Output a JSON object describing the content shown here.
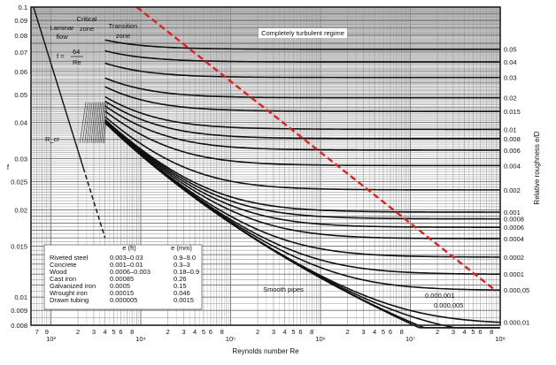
{
  "chart_data": {
    "type": "line",
    "title": "",
    "xlabel": "Reynolds number Re",
    "ylabel": "f",
    "right_label": "Relative roughness e/D",
    "x_scale": "log",
    "y_scale": "log",
    "xlim": [
      600,
      100000000
    ],
    "ylim": [
      0.008,
      0.1
    ],
    "grid": true,
    "x_tick_labels": [
      "7",
      "9",
      "10³",
      "2",
      "3",
      "4",
      "5",
      "6",
      "8",
      "10⁴",
      "2",
      "3",
      "4",
      "5",
      "6",
      "8",
      "10⁵",
      "2",
      "3",
      "4",
      "5",
      "6",
      "8",
      "10⁶",
      "2",
      "3",
      "4",
      "5",
      "6",
      "8",
      "10⁷",
      "2",
      "3",
      "4",
      "5",
      "6",
      "8",
      "10⁸"
    ],
    "y_ticks": [
      0.008,
      0.009,
      0.01,
      0.015,
      0.02,
      0.025,
      0.03,
      0.04,
      0.05,
      0.06,
      0.07,
      0.08,
      0.09,
      0.1
    ],
    "y_tick_labels": [
      "0.008",
      "0.009",
      "0.01",
      "0.015",
      "0.02",
      "0.025",
      "0.03",
      "0.04",
      "0.05",
      "0.06",
      "0.07",
      "0.08",
      "0.09",
      "0.1"
    ],
    "relative_roughness": [
      0.05,
      0.04,
      0.03,
      0.02,
      0.015,
      0.01,
      0.008,
      0.006,
      0.004,
      0.002,
      0.001,
      0.0008,
      0.0006,
      0.0004,
      0.0002,
      0.0001,
      5e-05,
      1e-05
    ],
    "relative_roughness_labels": [
      "0.05",
      "0.04",
      "0.03",
      "0.02",
      "0.015",
      "0.01",
      "0.008",
      "0.006",
      "0.004",
      "0.002",
      "0.001",
      "0.0008",
      "0.0006",
      "0.0004",
      "0.0002",
      "0.0001",
      "0.000,05",
      "0.000,01"
    ],
    "extra_curves": [
      {
        "label": "0.000,001",
        "roughness": 1e-06
      },
      {
        "label": "0.000,005",
        "roughness": 5e-06
      },
      {
        "label": "Smooth pipes",
        "roughness": 0
      }
    ],
    "laminar": {
      "equation": "f = 64/Re",
      "f_label": "f =",
      "num": "64",
      "den": "Re",
      "re_range": [
        600,
        4000
      ]
    },
    "critical_re_label": "R_cr",
    "dashed_boundary": {
      "color": "#e02020",
      "points": [
        [
          9000,
          0.1
        ],
        [
          90000000,
          0.0105
        ]
      ]
    },
    "regions": [
      {
        "name": "Laminar flow",
        "line1": "Laminar",
        "line2": "flow"
      },
      {
        "name": "Critical zone",
        "line1": "Critical",
        "line2": "zone"
      },
      {
        "name": "Transition zone",
        "line1": "Transition",
        "line2": "zone"
      },
      {
        "name": "Completely turbulent regime",
        "line1": "Completely turbulent regime",
        "line2": ""
      }
    ],
    "material_table": {
      "headers": [
        "",
        "e (ft)",
        "e (mm)"
      ],
      "rows": [
        [
          "Riveted steel",
          "0.003–0.03",
          "0.9–9.0"
        ],
        [
          "Concrete",
          "0.001–0.01",
          "0.3–3"
        ],
        [
          "Wood",
          "0.0006–0.003",
          "0.18–0.9"
        ],
        [
          "Cast iron",
          "0.00085",
          "0.26"
        ],
        [
          "Galvanized iron",
          "0.0005",
          "0.15"
        ],
        [
          "Wrought iron",
          "0.00015",
          "0.046"
        ],
        [
          "Drawn tubing",
          "0.000005",
          "0.0015"
        ]
      ]
    }
  }
}
